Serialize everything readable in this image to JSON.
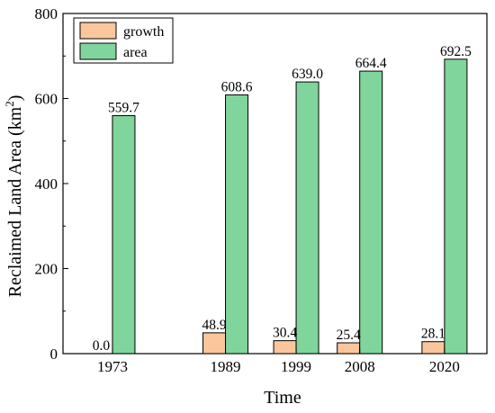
{
  "chart_data": {
    "type": "bar",
    "title": "",
    "xlabel": "Time",
    "ylabel": "Reclaimed Land Area (km",
    "ylabel_sup": "2",
    "ylabel_close": ")",
    "ylim": [
      0,
      800
    ],
    "yticks": [
      0,
      200,
      400,
      600,
      800
    ],
    "yticks_labels": [
      "0",
      "200",
      "400",
      "600",
      "800"
    ],
    "categories": [
      1973,
      1989,
      1999,
      2008,
      2020
    ],
    "categories_labels": [
      "1973",
      "1989",
      "1999",
      "2008",
      "2020"
    ],
    "series": [
      {
        "name": "growth",
        "color": "#fbc69b",
        "values": [
          0.0,
          48.9,
          30.4,
          25.4,
          28.1
        ],
        "value_labels": [
          "0.0",
          "48.9",
          "30.4",
          "25.4",
          "28.1"
        ]
      },
      {
        "name": "area",
        "color": "#7fd59b",
        "values": [
          559.7,
          608.6,
          639.0,
          664.4,
          692.5
        ],
        "value_labels": [
          "559.7",
          "608.6",
          "639.0",
          "664.4",
          "692.5"
        ]
      }
    ],
    "legend": "top-left",
    "grid": false
  }
}
